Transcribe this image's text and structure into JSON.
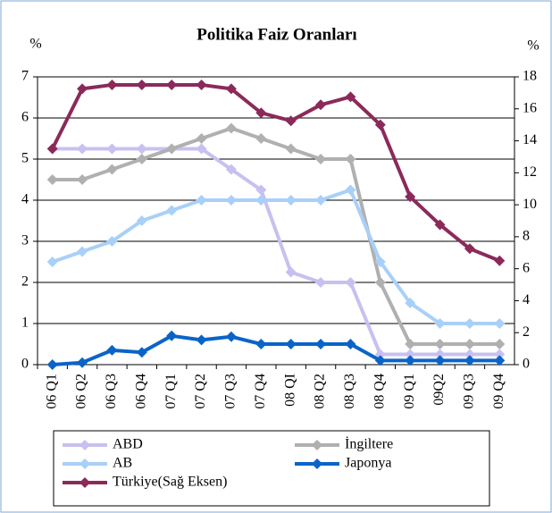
{
  "chart_data": {
    "type": "line",
    "title": "Politika Faiz Oranları",
    "ylabel": "%",
    "y2label": "%",
    "categories": [
      "06 Q1",
      "06 Q2",
      "06 Q3",
      "06 Q4",
      "07 Q1",
      "07 Q2",
      "07 Q3",
      "07 Q4",
      "08 QI",
      "08 Q2",
      "08 Q3",
      "08 Q4",
      "09 Q1",
      "09Q2",
      "09 Q3",
      "09 Q4"
    ],
    "series": [
      {
        "name": "ABD",
        "color": "#c8c0f0",
        "values": [
          5.25,
          5.25,
          5.25,
          5.25,
          5.25,
          5.25,
          4.75,
          4.25,
          2.25,
          2,
          2,
          0.25,
          0.25,
          0.25,
          0.25,
          0.25
        ]
      },
      {
        "name": "İngiltere",
        "color": "#b0b0b0",
        "values": [
          4.5,
          4.5,
          4.75,
          5,
          5.25,
          5.5,
          5.75,
          5.5,
          5.25,
          5,
          5,
          2,
          0.5,
          0.5,
          0.5,
          0.5
        ]
      },
      {
        "name": "AB",
        "color": "#a8d0f8",
        "values": [
          2.5,
          2.75,
          3,
          3.5,
          3.75,
          4,
          4,
          4,
          4,
          4,
          4.25,
          2.5,
          1.5,
          1,
          1,
          1
        ]
      },
      {
        "name": "Japonya",
        "color": "#0a64c8",
        "values": [
          0,
          0.05,
          0.35,
          0.3,
          0.7,
          0.6,
          0.68,
          0.5,
          0.5,
          0.5,
          0.5,
          0.1,
          0.1,
          0.1,
          0.1,
          0.1
        ]
      },
      {
        "name": "Türkiye(Sağ Eksen)",
        "color": "#8b2a5a",
        "axis": "y2",
        "values": [
          13.5,
          17.25,
          17.5,
          17.5,
          17.5,
          17.5,
          17.25,
          15.75,
          15.25,
          16.25,
          16.75,
          15,
          10.5,
          8.75,
          7.25,
          6.5
        ]
      }
    ],
    "ylim": [
      0,
      7
    ],
    "yticks": [
      0,
      1,
      2,
      3,
      4,
      5,
      6,
      7
    ],
    "y2lim": [
      0,
      18
    ],
    "y2ticks": [
      0,
      2,
      4,
      6,
      8,
      10,
      12,
      14,
      16,
      18
    ],
    "grid": true,
    "legend": "bottom"
  }
}
